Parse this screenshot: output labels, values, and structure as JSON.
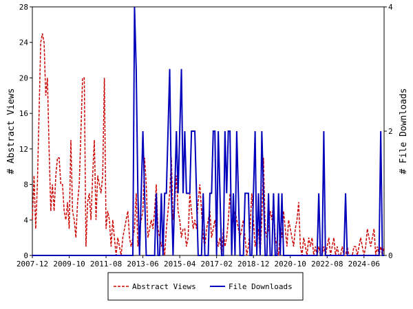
{
  "chart_data": {
    "type": "line",
    "categories": [
      "2007-12",
      null,
      null,
      null,
      null,
      null,
      null,
      null,
      null,
      null,
      null,
      null,
      null,
      null,
      null,
      null,
      null,
      null,
      null,
      null,
      null,
      null,
      "2009-10",
      null,
      null,
      null,
      null,
      null,
      null,
      null,
      null,
      null,
      null,
      null,
      null,
      null,
      null,
      null,
      null,
      null,
      null,
      null,
      null,
      null,
      "2011-08",
      null,
      null,
      null,
      null,
      null,
      null,
      null,
      null,
      null,
      null,
      null,
      null,
      null,
      null,
      null,
      null,
      null,
      null,
      null,
      null,
      null,
      "2013-06",
      null,
      null,
      null,
      null,
      null,
      null,
      null,
      null,
      null,
      null,
      null,
      null,
      null,
      null,
      null,
      null,
      null,
      null,
      null,
      null,
      null,
      "2015-04",
      null,
      null,
      null,
      null,
      null,
      null,
      null,
      null,
      null,
      null,
      null,
      null,
      null,
      null,
      null,
      null,
      null,
      null,
      null,
      null,
      null,
      "2017-02",
      null,
      null,
      null,
      null,
      null,
      null,
      null,
      null,
      null,
      null,
      null,
      null,
      null,
      null,
      null,
      null,
      null,
      null,
      null,
      null,
      null,
      "2018-12",
      null,
      null,
      null,
      null,
      null,
      null,
      null,
      null,
      null,
      null,
      null,
      null,
      null,
      null,
      null,
      null,
      null,
      null,
      null,
      null,
      null,
      "2020-10",
      null,
      null,
      null,
      null,
      null,
      null,
      null,
      null,
      null,
      null,
      null,
      null,
      null,
      null,
      null,
      null,
      null,
      null,
      null,
      null,
      null,
      "2022-08",
      null,
      null,
      null,
      null,
      null,
      null,
      null,
      null,
      null,
      null,
      null,
      null,
      null,
      null,
      null,
      null,
      null,
      null,
      null,
      null,
      null,
      "2024-06",
      null,
      null,
      null,
      null,
      null,
      null,
      null,
      null,
      null,
      null,
      null,
      null
    ],
    "y_label": "# Abstract Views",
    "y2_label": "# File Downloads",
    "ylim": [
      0,
      28
    ],
    "yticks": [
      0,
      4,
      8,
      12,
      16,
      20,
      24,
      28
    ],
    "y2lim": [
      0,
      4
    ],
    "y2ticks": [
      0,
      2,
      4
    ],
    "series": [
      {
        "name": "Abstract Views",
        "color": "#cc0000",
        "dashed": true,
        "values": [
          4,
          9,
          3,
          8,
          16,
          24,
          25,
          24,
          18,
          20,
          12,
          5,
          8,
          5,
          9,
          11,
          11,
          8,
          8,
          5,
          4,
          6,
          3,
          13,
          5,
          4,
          2,
          6,
          8,
          14,
          20,
          20,
          1,
          6,
          7,
          4,
          9,
          13,
          4,
          9,
          8,
          7,
          9,
          20,
          3,
          5,
          4,
          1,
          4,
          2,
          0,
          2,
          1,
          0,
          2,
          3,
          4,
          5,
          2,
          1,
          2,
          3,
          7,
          1,
          3,
          4,
          5,
          11,
          8,
          2,
          3,
          4,
          3,
          5,
          8,
          3,
          2,
          1,
          2,
          0,
          3,
          5,
          7,
          11,
          4,
          6,
          9,
          5,
          4,
          2,
          3,
          3,
          1,
          2,
          7,
          5,
          3,
          4,
          3,
          6,
          8,
          5,
          2,
          1,
          3,
          4,
          5,
          2,
          3,
          4,
          2,
          1,
          2,
          0,
          3,
          1,
          2,
          4,
          7,
          3,
          4,
          5,
          4,
          3,
          2,
          3,
          4,
          2,
          0,
          1,
          3,
          7,
          4,
          1,
          2,
          3,
          0,
          4,
          11,
          3,
          2,
          3,
          5,
          4,
          6,
          2,
          1,
          0,
          3,
          2,
          5,
          3,
          1,
          4,
          3,
          2,
          1,
          3,
          4,
          6,
          1,
          0,
          2,
          1,
          0,
          2,
          1,
          2,
          0,
          1,
          0,
          1,
          0,
          0,
          1,
          0,
          1,
          2,
          0,
          1,
          2,
          0,
          1,
          0,
          0,
          1,
          0,
          0,
          1,
          0,
          0,
          0,
          1,
          1,
          0,
          1,
          2,
          1,
          0,
          1,
          3,
          2,
          1,
          2,
          3,
          0,
          1,
          0,
          1,
          0,
          1
        ]
      },
      {
        "name": "File Downloads",
        "color": "#0000bb",
        "axis": "y2",
        "values": [
          0,
          0,
          0,
          0,
          0,
          0,
          0,
          0,
          0,
          0,
          0,
          0,
          0,
          0,
          0,
          0,
          0,
          0,
          0,
          0,
          0,
          0,
          0,
          0,
          0,
          0,
          0,
          0,
          0,
          0,
          0,
          0,
          0,
          0,
          0,
          0,
          0,
          0,
          0,
          0,
          0,
          0,
          0,
          0,
          0,
          0,
          0,
          0,
          0,
          0,
          0,
          0,
          0,
          0,
          0,
          0,
          0,
          0,
          0,
          0,
          0,
          4,
          3,
          1,
          0,
          1,
          2,
          1,
          0,
          0,
          0,
          0,
          0,
          0,
          1,
          0,
          0,
          1,
          0,
          1,
          1,
          2,
          3,
          1,
          0,
          1,
          2,
          1,
          2,
          3,
          1,
          2,
          1,
          1,
          1,
          2,
          2,
          2,
          1,
          0,
          0,
          0,
          1,
          0,
          0,
          0,
          1,
          1,
          2,
          2,
          0,
          2,
          1,
          0,
          0,
          2,
          1,
          2,
          2,
          0,
          1,
          0,
          2,
          1,
          0,
          0,
          0,
          1,
          1,
          1,
          0,
          0,
          1,
          2,
          0,
          1,
          0,
          2,
          1,
          0,
          0,
          1,
          0,
          0,
          1,
          0,
          0,
          1,
          0,
          1,
          0,
          0,
          0,
          0,
          0,
          0,
          0,
          0,
          0,
          0,
          0,
          0,
          0,
          0,
          0,
          0,
          0,
          0,
          0,
          0,
          0,
          1,
          0,
          0,
          2,
          0,
          0,
          0,
          0,
          0,
          0,
          0,
          0,
          0,
          0,
          0,
          0,
          1,
          0,
          0,
          0,
          0,
          0,
          0,
          0,
          0,
          0,
          0,
          0,
          0,
          0,
          0,
          0,
          0,
          0,
          0,
          0,
          0,
          2,
          0,
          0
        ]
      }
    ],
    "legend": "bottom"
  }
}
